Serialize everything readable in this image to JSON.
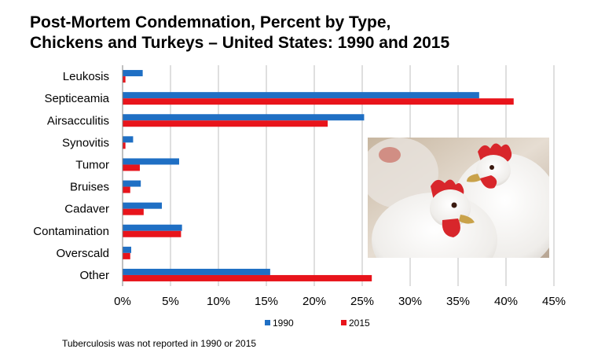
{
  "title_lines": [
    "Post-Mortem Condemnation, Percent by Type,",
    "Chickens and Turkeys – United States: 1990 and 2015"
  ],
  "footnote": "Tuberculosis was not reported in 1990 or 2015",
  "photo": {
    "subject": "two white chickens",
    "icon": "chicken-photo"
  },
  "colors": {
    "series_1990": "#1F6FC4",
    "series_2015": "#E8141B",
    "grid": "#BFBFBF"
  },
  "chart_data": {
    "type": "bar",
    "orientation": "horizontal",
    "title": "Post-Mortem Condemnation, Percent by Type, Chickens and Turkeys – United States: 1990 and 2015",
    "categories": [
      "Leukosis",
      "Septiceamia",
      "Airsacculitis",
      "Synovitis",
      "Tumor",
      "Bruises",
      "Cadaver",
      "Contamination",
      "Overscald",
      "Other"
    ],
    "series": [
      {
        "name": "1990",
        "values": [
          2.1,
          37.2,
          25.2,
          1.1,
          5.9,
          1.9,
          4.1,
          6.2,
          0.9,
          15.4
        ]
      },
      {
        "name": "2015",
        "values": [
          0.3,
          40.8,
          21.4,
          0.3,
          1.8,
          0.8,
          2.2,
          6.1,
          0.8,
          26.0
        ]
      }
    ],
    "xlim": [
      0,
      45
    ],
    "xticks": [
      0,
      5,
      10,
      15,
      20,
      25,
      30,
      35,
      40,
      45
    ],
    "xtick_labels": [
      "0%",
      "5%",
      "10%",
      "15%",
      "20%",
      "25%",
      "30%",
      "35%",
      "40%",
      "45%"
    ],
    "grid": true,
    "legend": "bottom"
  }
}
